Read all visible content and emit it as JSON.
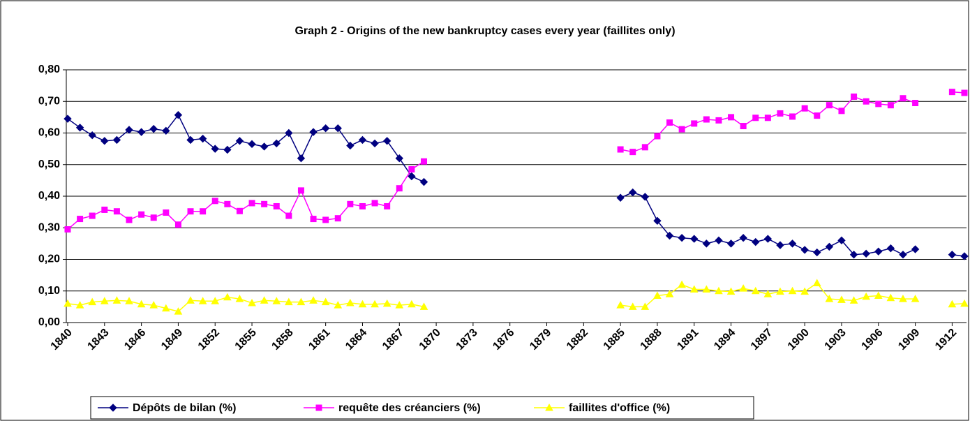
{
  "chart_data": {
    "type": "line",
    "title": "Graph 2 - Origins of the new bankruptcy cases every year (faillites only)",
    "categories": [
      "1840",
      null,
      null,
      "1843",
      null,
      null,
      "1846",
      null,
      null,
      "1849",
      null,
      null,
      "1852",
      null,
      null,
      "1855",
      null,
      null,
      "1858",
      null,
      null,
      "1861",
      null,
      null,
      "1864",
      null,
      null,
      "1867",
      null,
      null,
      "1870",
      null,
      null,
      "1873",
      null,
      null,
      "1876",
      null,
      null,
      "1879",
      null,
      null,
      "1882",
      null,
      null,
      "1885",
      null,
      null,
      "1888",
      null,
      null,
      "1891",
      null,
      null,
      "1894",
      null,
      null,
      "1897",
      null,
      null,
      "1900",
      null,
      null,
      "1903",
      null,
      null,
      "1906",
      null,
      null,
      "1909",
      null,
      null,
      "1912",
      null
    ],
    "series": [
      {
        "name": "Dépôts de bilan (%)",
        "color": "#000080",
        "marker": "diamond",
        "values": [
          0.645,
          0.617,
          0.593,
          0.575,
          0.578,
          0.61,
          0.603,
          0.613,
          0.607,
          0.657,
          0.578,
          0.582,
          0.55,
          0.547,
          0.575,
          0.565,
          0.557,
          0.567,
          0.6,
          0.52,
          0.603,
          0.615,
          0.615,
          0.56,
          0.578,
          0.567,
          0.575,
          0.52,
          0.463,
          0.445,
          null,
          null,
          null,
          null,
          null,
          null,
          null,
          null,
          null,
          null,
          null,
          null,
          null,
          null,
          null,
          0.395,
          0.412,
          0.398,
          0.322,
          0.275,
          0.268,
          0.265,
          0.25,
          0.26,
          0.25,
          0.268,
          0.255,
          0.265,
          0.245,
          0.25,
          0.23,
          0.222,
          0.24,
          0.26,
          0.215,
          0.218,
          0.225,
          0.235,
          0.215,
          0.232,
          null,
          null,
          0.215,
          0.21
        ]
      },
      {
        "name": "requête des créanciers (%)",
        "color": "#FF00FF",
        "marker": "square",
        "values": [
          0.295,
          0.328,
          0.338,
          0.357,
          0.352,
          0.325,
          0.342,
          0.332,
          0.348,
          0.31,
          0.352,
          0.352,
          0.385,
          0.375,
          0.353,
          0.378,
          0.375,
          0.368,
          0.338,
          0.418,
          0.328,
          0.325,
          0.33,
          0.375,
          0.368,
          0.378,
          0.368,
          0.425,
          0.485,
          0.51,
          null,
          null,
          null,
          null,
          null,
          null,
          null,
          null,
          null,
          null,
          null,
          null,
          null,
          null,
          null,
          0.548,
          0.54,
          0.555,
          0.59,
          0.633,
          0.612,
          0.63,
          0.643,
          0.64,
          0.65,
          0.622,
          0.648,
          0.648,
          0.662,
          0.652,
          0.678,
          0.655,
          0.688,
          0.67,
          0.715,
          0.7,
          0.692,
          0.688,
          0.71,
          0.695,
          null,
          null,
          0.73,
          0.727
        ]
      },
      {
        "name": "faillites d'office (%)",
        "color": "#FFFF00",
        "marker": "triangle",
        "values": [
          0.06,
          0.055,
          0.065,
          0.068,
          0.07,
          0.068,
          0.058,
          0.055,
          0.045,
          0.035,
          0.07,
          0.068,
          0.068,
          0.08,
          0.075,
          0.062,
          0.07,
          0.068,
          0.065,
          0.065,
          0.07,
          0.065,
          0.055,
          0.062,
          0.058,
          0.058,
          0.06,
          0.055,
          0.058,
          0.05,
          null,
          null,
          null,
          null,
          null,
          null,
          null,
          null,
          null,
          null,
          null,
          null,
          null,
          null,
          null,
          0.055,
          0.05,
          0.05,
          0.085,
          0.09,
          0.12,
          0.105,
          0.105,
          0.1,
          0.098,
          0.108,
          0.1,
          0.09,
          0.098,
          0.1,
          0.098,
          0.125,
          0.075,
          0.072,
          0.07,
          0.082,
          0.085,
          0.078,
          0.075,
          0.075,
          null,
          null,
          0.058,
          0.06
        ]
      }
    ],
    "ylim": [
      0,
      0.8
    ],
    "yticks": [
      {
        "value": 0,
        "label": "0,00"
      },
      {
        "value": 0.1,
        "label": "0,10"
      },
      {
        "value": 0.2,
        "label": "0,20"
      },
      {
        "value": 0.3,
        "label": "0,30"
      },
      {
        "value": 0.4,
        "label": "0,40"
      },
      {
        "value": 0.5,
        "label": "0,50"
      },
      {
        "value": 0.6,
        "label": "0,60"
      },
      {
        "value": 0.7,
        "label": "0,70"
      },
      {
        "value": 0.8,
        "label": "0,80"
      }
    ],
    "grid": true,
    "legend": "bottom"
  }
}
